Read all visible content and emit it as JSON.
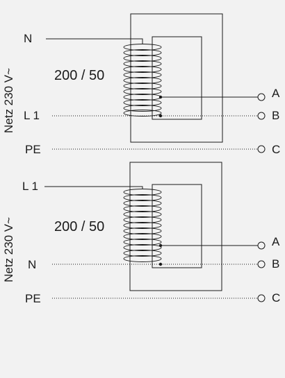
{
  "diagrams": [
    {
      "supply_label": "Netz 230 V~",
      "ratio_label": "200 / 50",
      "input_labels": [
        "N",
        "L 1",
        "PE"
      ],
      "output_labels": [
        "A",
        "B",
        "C"
      ]
    },
    {
      "supply_label": "Netz 230 V~",
      "ratio_label": "200 / 50",
      "input_labels": [
        "L 1",
        "N",
        "PE"
      ],
      "output_labels": [
        "A",
        "B",
        "C"
      ]
    }
  ],
  "colors": {
    "background": "#f2f2f2",
    "line": "#1a1a1a"
  }
}
